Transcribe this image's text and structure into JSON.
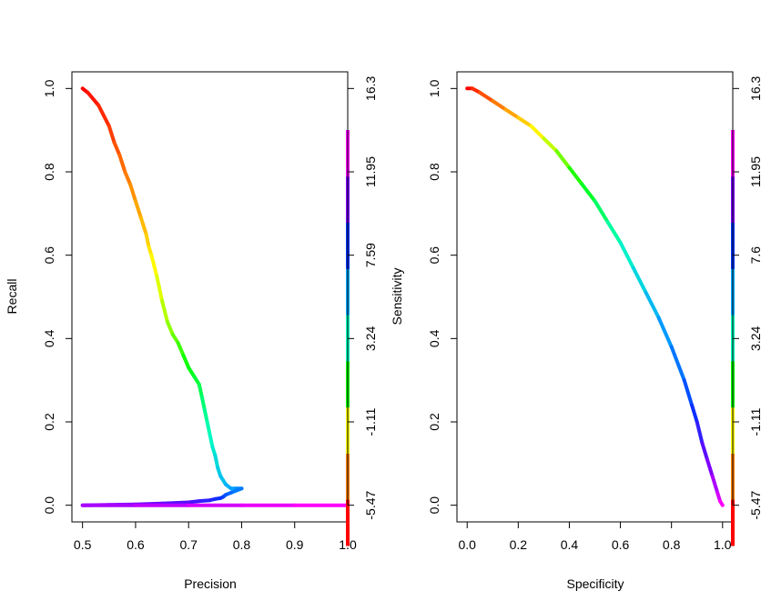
{
  "chart_data": [
    {
      "type": "line",
      "title": "",
      "xlabel": "Precision",
      "ylabel": "Recall",
      "xlim": [
        0.48,
        1.0
      ],
      "ylim": [
        -0.04,
        1.04
      ],
      "x_ticks": [
        "0.5",
        "0.6",
        "0.7",
        "0.8",
        "0.9",
        "1.0"
      ],
      "y_ticks": [
        "0.0",
        "0.2",
        "0.4",
        "0.6",
        "0.8",
        "1.0"
      ],
      "colorbar": {
        "label": "Sensitivity",
        "tick_labels": [
          "-5.47",
          "-1.11",
          "3.24",
          "7.59",
          "11.95",
          "16.3"
        ],
        "colors": [
          "#ff0000",
          "#ff7f00",
          "#ffff00",
          "#00ff00",
          "#00ffc0",
          "#00a8ff",
          "#0033ff",
          "#7a00ff",
          "#ff00ff"
        ]
      },
      "series": [
        {
          "x": [
            0.5,
            0.51,
            0.53,
            0.55,
            0.56,
            0.57,
            0.58,
            0.59,
            0.6,
            0.61,
            0.62,
            0.625,
            0.63,
            0.64,
            0.65,
            0.66,
            0.67,
            0.68,
            0.69,
            0.7,
            0.71,
            0.72,
            0.725,
            0.73,
            0.735,
            0.74,
            0.745,
            0.75,
            0.755,
            0.76,
            0.77,
            0.78,
            0.79,
            0.8,
            0.78,
            0.77,
            0.765,
            0.76,
            0.75,
            0.74,
            0.72,
            0.7,
            0.65,
            0.6,
            0.55,
            0.5,
            0.6,
            0.7,
            0.8,
            0.9,
            1.0
          ],
          "y": [
            1.0,
            0.99,
            0.96,
            0.91,
            0.87,
            0.84,
            0.8,
            0.77,
            0.73,
            0.69,
            0.65,
            0.62,
            0.6,
            0.55,
            0.49,
            0.44,
            0.41,
            0.39,
            0.36,
            0.33,
            0.31,
            0.29,
            0.26,
            0.23,
            0.2,
            0.17,
            0.14,
            0.12,
            0.09,
            0.07,
            0.05,
            0.04,
            0.04,
            0.04,
            0.03,
            0.025,
            0.02,
            0.017,
            0.015,
            0.012,
            0.01,
            0.007,
            0.004,
            0.002,
            0.001,
            0.0,
            0.0,
            0.0,
            0.0,
            0.0,
            0.0
          ]
        }
      ]
    },
    {
      "type": "line",
      "title": "",
      "xlabel": "Specificity",
      "ylabel": "",
      "xlim": [
        -0.04,
        1.04
      ],
      "ylim": [
        -0.04,
        1.04
      ],
      "x_ticks": [
        "0.0",
        "0.2",
        "0.4",
        "0.6",
        "0.8",
        "1.0"
      ],
      "y_ticks": [
        "0.0",
        "0.2",
        "0.4",
        "0.6",
        "0.8",
        "1.0"
      ],
      "colorbar": {
        "label": "",
        "tick_labels": [
          "-5.47",
          "-1.11",
          "3.24",
          "7.6",
          "11.95",
          "16.3"
        ],
        "colors": [
          "#ff0000",
          "#ff7f00",
          "#ffff00",
          "#00ff00",
          "#00ffc0",
          "#00a8ff",
          "#0033ff",
          "#7a00ff",
          "#ff00ff"
        ]
      },
      "series": [
        {
          "x": [
            0.0,
            0.02,
            0.05,
            0.1,
            0.15,
            0.2,
            0.25,
            0.3,
            0.35,
            0.4,
            0.45,
            0.5,
            0.55,
            0.6,
            0.65,
            0.7,
            0.75,
            0.8,
            0.85,
            0.88,
            0.9,
            0.92,
            0.94,
            0.96,
            0.98,
            0.99,
            1.0
          ],
          "y": [
            1.0,
            1.0,
            0.99,
            0.97,
            0.95,
            0.93,
            0.91,
            0.88,
            0.85,
            0.81,
            0.77,
            0.73,
            0.68,
            0.63,
            0.57,
            0.51,
            0.45,
            0.38,
            0.3,
            0.24,
            0.2,
            0.15,
            0.11,
            0.07,
            0.03,
            0.01,
            0.0
          ]
        }
      ]
    }
  ]
}
